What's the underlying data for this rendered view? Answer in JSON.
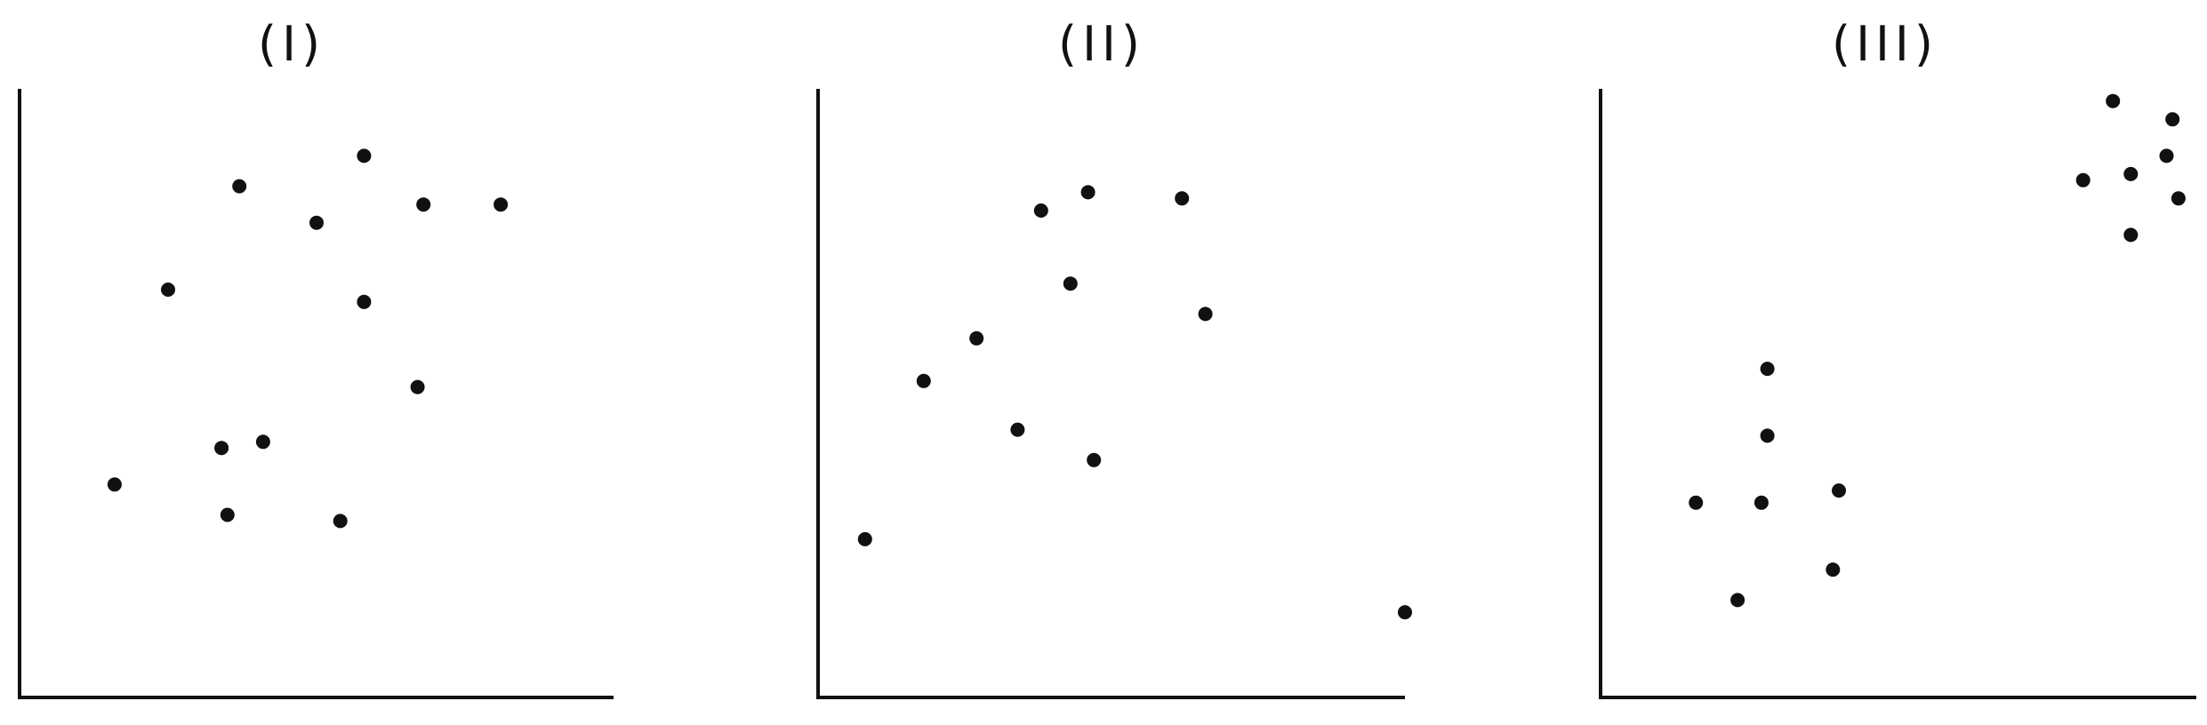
{
  "chart_data": [
    {
      "type": "scatter",
      "title": "(I)",
      "xlabel": "",
      "ylabel": "",
      "xlim": [
        0,
        10
      ],
      "ylim": [
        0,
        10
      ],
      "grid": false,
      "x": [
        1.6,
        2.5,
        3.7,
        5.0,
        4.1,
        5.8,
        5.8,
        6.8,
        8.1,
        6.7,
        3.4,
        3.5,
        5.4
      ],
      "y": [
        3.5,
        6.7,
        8.4,
        7.8,
        4.2,
        8.9,
        6.5,
        8.1,
        8.1,
        5.1,
        4.1,
        3.0,
        2.9
      ]
    },
    {
      "type": "scatter",
      "title": "(II)",
      "xlabel": "",
      "ylabel": "",
      "xlim": [
        0,
        10
      ],
      "ylim": [
        0,
        10
      ],
      "grid": false,
      "x": [
        0.8,
        1.8,
        2.7,
        3.4,
        3.8,
        4.3,
        4.6,
        6.2,
        6.6,
        10.0,
        4.7
      ],
      "y": [
        2.6,
        5.2,
        5.9,
        4.4,
        8.0,
        6.8,
        8.3,
        8.2,
        6.3,
        1.4,
        3.9
      ]
    },
    {
      "type": "scatter",
      "title": "(III)",
      "xlabel": "",
      "ylabel": "",
      "xlim": [
        0,
        10
      ],
      "ylim": [
        0,
        10
      ],
      "grid": false,
      "x": [
        1.6,
        2.3,
        2.7,
        2.8,
        2.8,
        4.0,
        3.9,
        8.1,
        8.9,
        8.9,
        8.6,
        9.6,
        9.5,
        9.7
      ],
      "y": [
        3.2,
        1.6,
        3.2,
        4.3,
        5.4,
        3.4,
        2.1,
        8.5,
        8.6,
        7.6,
        9.8,
        9.5,
        8.9,
        8.2
      ]
    }
  ]
}
